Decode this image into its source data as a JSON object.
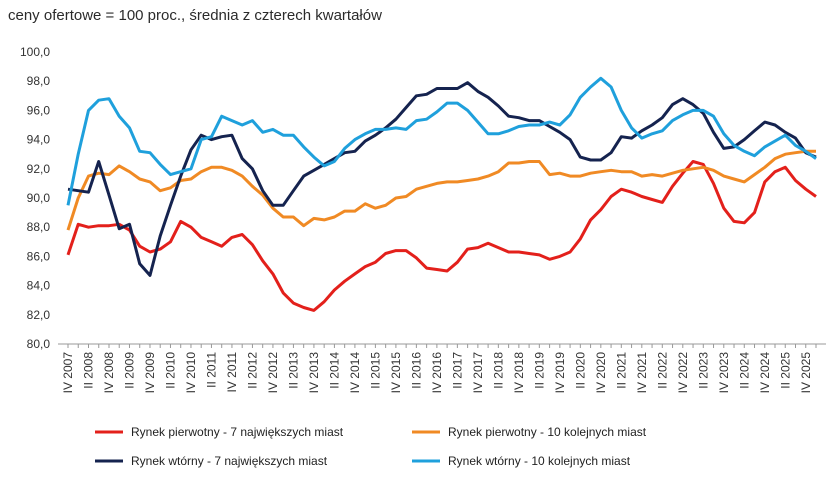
{
  "chart_data": {
    "type": "line",
    "title": "ceny ofertowe = 100 proc., średnia z czterech kwartałów",
    "categories": [
      "IV 2007",
      null,
      "II 2008",
      null,
      "IV 2008",
      null,
      "II 2009",
      null,
      "IV 2009",
      null,
      "II 2010",
      null,
      "IV 2010",
      null,
      "II 2011",
      null,
      "IV 2011",
      null,
      "II 2012",
      null,
      "IV 2012",
      null,
      "II 2013",
      null,
      "IV 2013",
      null,
      "II 2014",
      null,
      "IV 2014",
      null,
      "II 2015",
      null,
      "IV 2015",
      null,
      "II 2016",
      null,
      "IV 2016",
      null,
      "II 2017",
      null,
      "IV 2017",
      null,
      "II 2018",
      null,
      "IV 2018",
      null,
      "II 2019",
      null,
      "IV 2019",
      null,
      "II 2020",
      null,
      "IV 2020",
      null,
      "II 2021",
      null,
      "IV 2021",
      null,
      "II 2022",
      null,
      "IV 2022",
      null,
      "II 2023",
      null,
      "IV 2023",
      null,
      "II 2024",
      null,
      "IV 2024",
      null,
      "II 2025",
      null,
      "IV 2025",
      null
    ],
    "series": [
      {
        "name": "Rynek pierwotny - 7 największych miast",
        "color": "#e3201b",
        "values": [
          86.1,
          88.2,
          88.0,
          88.1,
          88.1,
          88.2,
          87.8,
          86.7,
          86.3,
          86.5,
          87.0,
          88.4,
          88.0,
          87.3,
          87.0,
          86.7,
          87.3,
          87.5,
          86.8,
          85.7,
          84.8,
          83.5,
          82.8,
          82.5,
          82.3,
          82.9,
          83.7,
          84.3,
          84.8,
          85.3,
          85.6,
          86.2,
          86.4,
          86.4,
          85.9,
          85.2,
          85.1,
          85.0,
          85.6,
          86.5,
          86.6,
          86.9,
          86.6,
          86.3,
          86.3,
          86.2,
          86.1,
          85.8,
          86.0,
          86.3,
          87.2,
          88.5,
          89.2,
          90.1,
          90.6,
          90.4,
          90.1,
          89.9,
          89.7,
          90.8,
          91.7,
          92.5,
          92.3,
          91.0,
          89.3,
          88.4,
          88.3,
          89.0,
          91.1,
          91.8,
          92.1,
          91.2,
          90.6,
          90.1
        ]
      },
      {
        "name": "Rynek pierwotny - 10 kolejnych miast",
        "color": "#f08a24",
        "values": [
          87.8,
          90.0,
          91.5,
          91.7,
          91.6,
          92.2,
          91.8,
          91.3,
          91.1,
          90.5,
          90.7,
          91.2,
          91.3,
          91.8,
          92.1,
          92.1,
          91.9,
          91.5,
          90.8,
          90.2,
          89.3,
          88.7,
          88.7,
          88.1,
          88.6,
          88.5,
          88.7,
          89.1,
          89.1,
          89.6,
          89.3,
          89.5,
          90.0,
          90.1,
          90.6,
          90.8,
          91.0,
          91.1,
          91.1,
          91.2,
          91.3,
          91.5,
          91.8,
          92.4,
          92.4,
          92.5,
          92.5,
          91.6,
          91.7,
          91.5,
          91.5,
          91.7,
          91.8,
          91.9,
          91.8,
          91.8,
          91.5,
          91.6,
          91.5,
          91.7,
          91.9,
          92.0,
          92.1,
          91.9,
          91.5,
          91.3,
          91.1,
          91.6,
          92.1,
          92.7,
          93.0,
          93.1,
          93.2,
          93.2
        ]
      },
      {
        "name": "Rynek wtórny - 7 największych miast",
        "color": "#15234f",
        "values": [
          90.6,
          90.5,
          90.4,
          92.5,
          90.2,
          87.9,
          88.2,
          85.5,
          84.7,
          87.4,
          89.5,
          91.5,
          93.3,
          94.3,
          94.0,
          94.2,
          94.3,
          92.7,
          92.0,
          90.5,
          89.5,
          89.5,
          90.5,
          91.5,
          91.9,
          92.3,
          92.7,
          93.1,
          93.2,
          93.9,
          94.3,
          94.8,
          95.4,
          96.2,
          97.0,
          97.1,
          97.5,
          97.5,
          97.5,
          97.9,
          97.3,
          96.9,
          96.3,
          95.6,
          95.5,
          95.3,
          95.3,
          94.9,
          94.5,
          94.0,
          92.8,
          92.6,
          92.6,
          93.1,
          94.2,
          94.1,
          94.6,
          95.0,
          95.5,
          96.4,
          96.8,
          96.4,
          95.8,
          94.5,
          93.4,
          93.5,
          94.0,
          94.6,
          95.2,
          95.0,
          94.5,
          94.1,
          93.1,
          92.8
        ]
      },
      {
        "name": "Rynek wtórny -  10 kolejnych miast",
        "color": "#1fa0dc",
        "values": [
          89.5,
          93.0,
          96.0,
          96.7,
          96.8,
          95.6,
          94.8,
          93.2,
          93.1,
          92.3,
          91.6,
          91.8,
          92.0,
          94.0,
          94.2,
          95.6,
          95.3,
          95.0,
          95.3,
          94.5,
          94.7,
          94.3,
          94.3,
          93.5,
          92.8,
          92.2,
          92.5,
          93.4,
          94.0,
          94.4,
          94.7,
          94.7,
          94.8,
          94.7,
          95.3,
          95.4,
          95.9,
          96.5,
          96.5,
          96.0,
          95.2,
          94.4,
          94.4,
          94.6,
          94.9,
          95.0,
          95.0,
          95.2,
          95.0,
          95.7,
          96.9,
          97.6,
          98.2,
          97.6,
          96.0,
          94.8,
          94.1,
          94.4,
          94.6,
          95.3,
          95.7,
          96.0,
          96.0,
          95.6,
          94.4,
          93.6,
          93.2,
          92.9,
          93.5,
          93.9,
          94.3,
          93.6,
          93.2,
          92.7
        ]
      }
    ],
    "ylim": [
      80,
      100
    ],
    "yticks": [
      {
        "value": 80,
        "label": "80,0"
      },
      {
        "value": 82,
        "label": "82,0"
      },
      {
        "value": 84,
        "label": "84,0"
      },
      {
        "value": 86,
        "label": "86,0"
      },
      {
        "value": 88,
        "label": "88,0"
      },
      {
        "value": 90,
        "label": "90,0"
      },
      {
        "value": 92,
        "label": "92,0"
      },
      {
        "value": 94,
        "label": "94,0"
      },
      {
        "value": 96,
        "label": "96,0"
      },
      {
        "value": 98,
        "label": "98,0"
      },
      {
        "value": 100,
        "label": "100,0"
      }
    ],
    "grid": false
  }
}
